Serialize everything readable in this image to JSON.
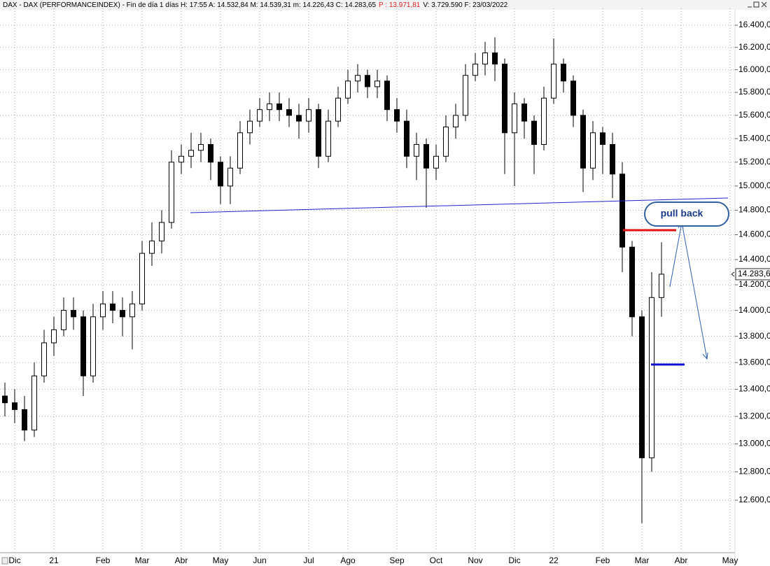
{
  "header": {
    "main": "DAX - DAX (PERFORMANCEINDEX) - Fin de día 1 días  H: 17:55  A: 14.532,84  M: 14.539,31  m: 14.226,43  C: 14.283,65",
    "p": "P : 13.971,81",
    "rest": "V: 3.729.590  F: 23/03/2022"
  },
  "chart_data": {
    "type": "candlestick",
    "color": "#000000",
    "log_scale": true,
    "grid": true,
    "categories": [
      null,
      "Dic",
      null,
      null,
      null,
      "21",
      null,
      null,
      null,
      null,
      "Feb",
      null,
      null,
      null,
      "Mar",
      null,
      null,
      null,
      "Abr",
      null,
      null,
      null,
      "May",
      null,
      null,
      null,
      "Jun",
      null,
      null,
      null,
      null,
      "Jul",
      null,
      null,
      null,
      "Ago",
      null,
      null,
      null,
      null,
      "Sep",
      null,
      null,
      null,
      "Oct",
      null,
      null,
      null,
      "Nov",
      null,
      null,
      null,
      "Dic",
      null,
      null,
      null,
      "22",
      null,
      null,
      null,
      null,
      "Feb",
      null,
      null,
      null,
      "Mar",
      null,
      null,
      null,
      "Abr",
      null,
      null,
      null,
      null,
      "May"
    ],
    "open": [
      13350,
      13300,
      13250,
      13100,
      13500,
      13750,
      13850,
      14000,
      13950,
      13500,
      13950,
      14050,
      14000,
      13950,
      14050,
      14450,
      14550,
      14700,
      15200,
      15250,
      15300,
      15350,
      15200,
      15000,
      15150,
      15450,
      15550,
      15650,
      15700,
      15650,
      15600,
      15550,
      15650,
      15250,
      15550,
      15750,
      15900,
      15950,
      15850,
      15900,
      15650,
      15550,
      15250,
      15350,
      15150,
      15250,
      15500,
      15600,
      15950,
      16050,
      16150,
      16050,
      15450,
      15700,
      15550,
      15350,
      15750,
      16050,
      15900,
      15600,
      15150,
      15450,
      15350,
      15100,
      14500,
      13950,
      12900,
      14100,
      null,
      null,
      null,
      null,
      null,
      null,
      null
    ],
    "high": [
      13450,
      13400,
      13350,
      13600,
      13850,
      13950,
      14100,
      14100,
      14000,
      14050,
      14150,
      14150,
      14100,
      14150,
      14550,
      14700,
      14800,
      15300,
      15350,
      15450,
      15450,
      15400,
      15250,
      15250,
      15550,
      15650,
      15750,
      15800,
      15800,
      15750,
      15700,
      15750,
      15700,
      15650,
      15850,
      16000,
      16050,
      16000,
      16000,
      15950,
      15750,
      15650,
      15450,
      15400,
      15350,
      15600,
      15700,
      16050,
      16150,
      16250,
      16290,
      16100,
      15800,
      15750,
      15600,
      15850,
      16280,
      16100,
      15950,
      15650,
      15550,
      15500,
      15450,
      15200,
      14550,
      14000,
      14300,
      14539.31,
      null,
      null,
      null,
      null,
      null,
      null,
      null
    ],
    "low": [
      13200,
      13150,
      13020,
      13050,
      13450,
      13650,
      13800,
      13850,
      13350,
      13450,
      13850,
      13900,
      13800,
      13700,
      14000,
      14350,
      14450,
      14650,
      15100,
      15150,
      15200,
      15050,
      14850,
      14850,
      15100,
      15350,
      15500,
      15550,
      15550,
      15500,
      15400,
      15450,
      15150,
      15200,
      15500,
      15700,
      15800,
      15750,
      15750,
      15550,
      15450,
      15150,
      15050,
      14820,
      15050,
      15200,
      15400,
      15550,
      15900,
      15950,
      15900,
      15100,
      15000,
      15400,
      15100,
      15300,
      15700,
      15800,
      15500,
      14950,
      15050,
      15100,
      14900,
      14300,
      13800,
      12440,
      12800,
      13950,
      null,
      null,
      null,
      null,
      null,
      null,
      null
    ],
    "close": [
      13300,
      13250,
      13100,
      13500,
      13750,
      13850,
      14000,
      13950,
      13500,
      13950,
      14050,
      14000,
      13950,
      14050,
      14450,
      14550,
      14700,
      15200,
      15250,
      15300,
      15350,
      15200,
      15000,
      15150,
      15450,
      15550,
      15650,
      15700,
      15650,
      15600,
      15550,
      15650,
      15250,
      15550,
      15750,
      15900,
      15950,
      15850,
      15900,
      15650,
      15550,
      15250,
      15350,
      15150,
      15250,
      15500,
      15600,
      15950,
      16050,
      16150,
      16050,
      15450,
      15700,
      15550,
      15350,
      15750,
      16050,
      15900,
      15600,
      15150,
      15450,
      15350,
      15100,
      14500,
      13950,
      12900,
      14100,
      14283.65,
      null,
      null,
      null,
      null,
      null,
      null,
      null
    ],
    "ylim": [
      12262,
      16554
    ],
    "yticks": [
      {
        "value": 16400,
        "label": "16.400,00"
      },
      {
        "value": 16200,
        "label": "16.200,00"
      },
      {
        "value": 16000,
        "label": "16.000,00"
      },
      {
        "value": 15800,
        "label": "15.800,00"
      },
      {
        "value": 15600,
        "label": "15.600,00"
      },
      {
        "value": 15400,
        "label": "15.400,00"
      },
      {
        "value": 15200,
        "label": "15.200,00"
      },
      {
        "value": 15000,
        "label": "15.000,00"
      },
      {
        "value": 14800,
        "label": "14.800,00"
      },
      {
        "value": 14600,
        "label": "14.600,00"
      },
      {
        "value": 14400,
        "label": "14.400,00"
      },
      {
        "value": 14200,
        "label": "14.200,00"
      },
      {
        "value": 14000,
        "label": "14.000,00"
      },
      {
        "value": 13800,
        "label": "13.800,00"
      },
      {
        "value": 13600,
        "label": "13.600,00"
      },
      {
        "value": 13400,
        "label": "13.400,00"
      },
      {
        "value": 13200,
        "label": "13.200,00"
      },
      {
        "value": 13000,
        "label": "13.000,00"
      },
      {
        "value": 12800,
        "label": "12.800,00"
      },
      {
        "value": 12600,
        "label": "12.600,00"
      }
    ],
    "last_price_label": "14.283,6",
    "annotation": "pull back"
  }
}
